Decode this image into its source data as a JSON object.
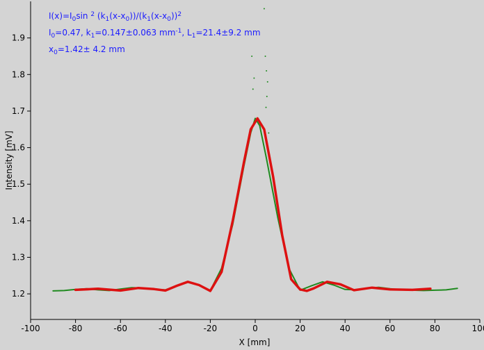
{
  "chart_data": {
    "type": "scatter",
    "xlabel": "X [mm]",
    "ylabel": "Intensity [mV]",
    "xlim": [
      -100,
      100
    ],
    "ylim": [
      1.13,
      2.0
    ],
    "x_ticks": [
      -100,
      -80,
      -60,
      -40,
      -20,
      0,
      20,
      40,
      60,
      80,
      100
    ],
    "y_ticks": [
      1.2,
      1.3,
      1.4,
      1.5,
      1.6,
      1.7,
      1.8,
      1.9
    ],
    "grid": false,
    "annotation": {
      "line1": "I(x)=I0sin 2 (k1(x-x0))/(k1(x-x0))2",
      "line2": "I0=0.47,  k1=0.147±0.063 mm-1,   L1=21.4±9.2 mm",
      "line3": "x0=1.42±  4.2 mm"
    },
    "series": [
      {
        "color": "#1f8a1f",
        "x": [
          -90,
          -85,
          -80,
          -75,
          -70,
          -65,
          -60,
          -55,
          -50,
          -45,
          -40,
          -35,
          -30,
          -25,
          -20,
          -15,
          -10,
          -5,
          -2,
          0,
          2,
          5,
          10,
          15,
          20,
          25,
          30,
          35,
          40,
          45,
          50,
          55,
          60,
          65,
          70,
          75,
          80,
          85,
          90
        ],
        "y": [
          1.208,
          1.209,
          1.212,
          1.214,
          1.211,
          1.209,
          1.213,
          1.217,
          1.216,
          1.212,
          1.211,
          1.222,
          1.232,
          1.225,
          1.209,
          1.27,
          1.39,
          1.55,
          1.64,
          1.68,
          1.66,
          1.57,
          1.41,
          1.27,
          1.21,
          1.222,
          1.233,
          1.224,
          1.212,
          1.211,
          1.216,
          1.218,
          1.214,
          1.211,
          1.21,
          1.209,
          1.21,
          1.211,
          1.215
        ]
      },
      {
        "color": "#dd1111",
        "x": [
          -80,
          -70,
          -60,
          -52,
          -45,
          -40,
          -35,
          -30,
          -25,
          -20,
          -15,
          -10,
          -5,
          -2,
          1,
          4,
          8,
          12,
          16,
          20,
          23,
          26,
          32,
          38,
          44,
          52,
          60,
          70,
          78
        ],
        "y": [
          1.211,
          1.214,
          1.209,
          1.216,
          1.213,
          1.209,
          1.222,
          1.233,
          1.224,
          1.208,
          1.26,
          1.4,
          1.56,
          1.65,
          1.68,
          1.65,
          1.52,
          1.36,
          1.24,
          1.212,
          1.208,
          1.215,
          1.233,
          1.226,
          1.21,
          1.217,
          1.212,
          1.211,
          1.214
        ]
      }
    ],
    "outliers": {
      "color": "#1f8a1f",
      "x": [
        -1.5,
        -1.0,
        -0.5,
        4,
        4.5,
        5,
        5.5,
        5.2,
        4.8,
        6
      ],
      "y": [
        1.85,
        1.76,
        1.79,
        1.98,
        1.85,
        1.81,
        1.78,
        1.74,
        1.71,
        1.64
      ]
    }
  }
}
